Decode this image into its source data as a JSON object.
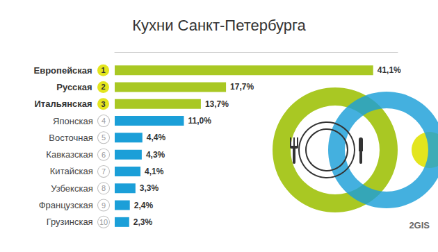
{
  "chart_data": {
    "type": "bar",
    "title": "Кухни Санкт-Петербурга",
    "orientation": "horizontal",
    "categories": [
      "Европейская",
      "Русская",
      "Итальянская",
      "Японская",
      "Восточная",
      "Кавказская",
      "Китайская",
      "Узбекская",
      "Французская",
      "Грузинская"
    ],
    "ranks": [
      1,
      2,
      3,
      4,
      5,
      6,
      7,
      8,
      9,
      10
    ],
    "values": [
      41.1,
      17.7,
      13.7,
      11.0,
      4.4,
      4.3,
      4.1,
      3.3,
      2.4,
      2.3
    ],
    "value_labels": [
      "41,1%",
      "17,7%",
      "13,7%",
      "11,0%",
      "4,4%",
      "4,3%",
      "4,1%",
      "3,3%",
      "2,4%",
      "2,3%"
    ],
    "colors": [
      "#a9c823",
      "#a9c823",
      "#a9c823",
      "#1b9fd8",
      "#1b9fd8",
      "#1b9fd8",
      "#1b9fd8",
      "#1b9fd8",
      "#1b9fd8",
      "#1b9fd8"
    ],
    "xlim": [
      0,
      45
    ],
    "tick_labels": false,
    "grid": false,
    "data_labels": true,
    "annotations": [
      "2GIS"
    ]
  }
}
